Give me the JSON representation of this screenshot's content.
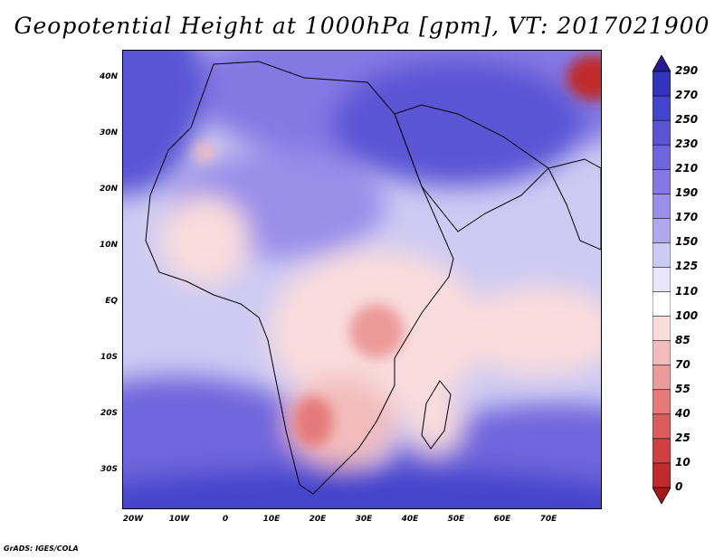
{
  "title": "Geopotential Height at 1000hPa [gpm], VT: 2017021900",
  "footer": "GrADS: IGES/COLA",
  "map": {
    "region": "Africa, Middle East and western Indian Ocean",
    "variable": "Geopotential Height at 1000hPa",
    "units": "gpm",
    "valid_time": "2017021900",
    "lon_range": [
      -25,
      80
    ],
    "lat_range": [
      -37,
      45
    ],
    "x_ticks": [
      {
        "value": -20,
        "label": "20W"
      },
      {
        "value": -10,
        "label": "10W"
      },
      {
        "value": 0,
        "label": "0"
      },
      {
        "value": 10,
        "label": "10E"
      },
      {
        "value": 20,
        "label": "20E"
      },
      {
        "value": 30,
        "label": "30E"
      },
      {
        "value": 40,
        "label": "40E"
      },
      {
        "value": 50,
        "label": "50E"
      },
      {
        "value": 60,
        "label": "60E"
      },
      {
        "value": 70,
        "label": "70E"
      }
    ],
    "y_ticks": [
      {
        "value": 40,
        "label": "40N"
      },
      {
        "value": 30,
        "label": "30N"
      },
      {
        "value": 20,
        "label": "20N"
      },
      {
        "value": 10,
        "label": "10N"
      },
      {
        "value": 0,
        "label": "EQ"
      },
      {
        "value": -10,
        "label": "10S"
      },
      {
        "value": -20,
        "label": "20S"
      },
      {
        "value": -30,
        "label": "30S"
      }
    ]
  },
  "colorbar": {
    "labels": [
      "290",
      "270",
      "250",
      "230",
      "210",
      "190",
      "170",
      "150",
      "125",
      "110",
      "100",
      "85",
      "70",
      "55",
      "40",
      "25",
      "10",
      "0"
    ],
    "colors": [
      "#2a1a9a",
      "#3333bb",
      "#4444cc",
      "#5a55d5",
      "#6f66dd",
      "#8478e3",
      "#9a8ee9",
      "#b0a8ee",
      "#cdcaf3",
      "#e8e6f8",
      "#ffffff",
      "#f9dcdc",
      "#f3bcbc",
      "#ec9a9a",
      "#e47a7a",
      "#da5c5c",
      "#d04040",
      "#c02a2a",
      "#a81818"
    ]
  }
}
